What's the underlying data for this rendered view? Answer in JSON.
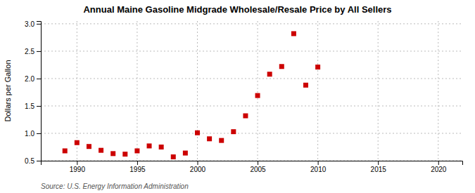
{
  "chart_data": {
    "type": "scatter",
    "title": "Annual Maine Gasoline Midgrade Wholesale/Resale Price by All Sellers",
    "ylabel": "Dollars per Gallon",
    "annotations": [
      "Source: U.S. Energy Information Administration"
    ],
    "x": [
      1989,
      1990,
      1991,
      1992,
      1993,
      1994,
      1995,
      1996,
      1997,
      1998,
      1999,
      2000,
      2001,
      2002,
      2003,
      2004,
      2005,
      2006,
      2007,
      2008,
      2009,
      2010
    ],
    "values": [
      0.68,
      0.83,
      0.76,
      0.69,
      0.63,
      0.62,
      0.68,
      0.77,
      0.75,
      0.57,
      0.64,
      1.01,
      0.9,
      0.87,
      1.03,
      1.32,
      1.69,
      2.08,
      2.22,
      2.82,
      1.88,
      2.21
    ],
    "xlim": [
      1987,
      2022
    ],
    "ylim": [
      0.5,
      3.05
    ],
    "xticks": [
      1990,
      1995,
      2000,
      2005,
      2010,
      2015,
      2020
    ],
    "yticks": [
      0.5,
      {
        "value": 1.0,
        "label": "1.0"
      },
      1.5,
      {
        "value": 2.0,
        "label": "2.0"
      },
      2.5,
      {
        "value": 3.0,
        "label": "3.0"
      }
    ],
    "color": "#cc0000",
    "marker": "square",
    "grid": true
  }
}
